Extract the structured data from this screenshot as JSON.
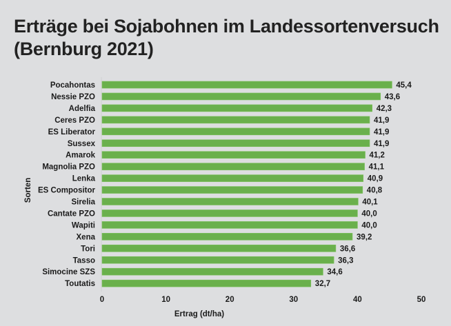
{
  "chart_data": {
    "type": "bar",
    "orientation": "horizontal",
    "title": "Erträge bei Sojabohnen im Landessortenversuch",
    "subtitle": "(Bernburg 2021)",
    "xlabel": "Ertrag (dt/ha)",
    "ylabel": "Sorten",
    "xlim": [
      0,
      50
    ],
    "xticks": [
      "0",
      "10",
      "20",
      "30",
      "40",
      "50"
    ],
    "grid": false,
    "bar_color": "#6ab04c",
    "categories": [
      "Pocahontas",
      "Nessie PZO",
      "Adelfia",
      "Ceres PZO",
      "ES Liberator",
      "Sussex",
      "Amarok",
      "Magnolia PZO",
      "Lenka",
      "ES Compositor",
      "Sirelia",
      "Cantate PZO",
      "Wapiti",
      "Xena",
      "Tori",
      "Tasso",
      "Simocine SZS",
      "Toutatis"
    ],
    "values": [
      45.4,
      43.6,
      42.3,
      41.9,
      41.9,
      41.9,
      41.2,
      41.1,
      40.9,
      40.8,
      40.1,
      40.0,
      40.0,
      39.2,
      36.6,
      36.3,
      34.6,
      32.7
    ],
    "value_labels": [
      "45,4",
      "43,6",
      "42,3",
      "41,9",
      "41,9",
      "41,9",
      "41,2",
      "41,1",
      "40,9",
      "40,8",
      "40,1",
      "40,0",
      "40,0",
      "39,2",
      "36,6",
      "36,3",
      "34,6",
      "32,7"
    ]
  }
}
